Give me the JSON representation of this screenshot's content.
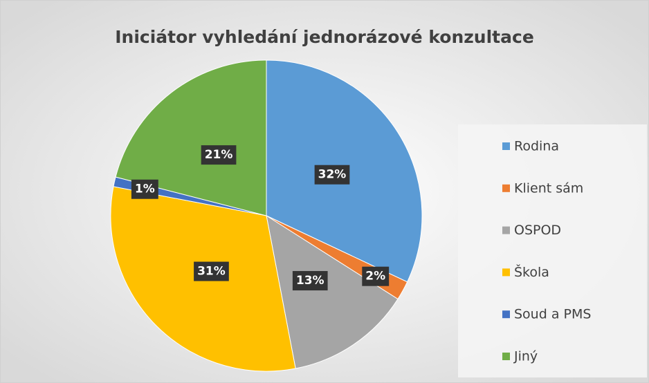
{
  "chart_data": {
    "type": "pie",
    "title": "Iniciátor vyhledání jednorázové konzultace",
    "categories": [
      "Rodina",
      "Klient sám",
      "OSPOD",
      "Škola",
      "Soud a PMS",
      "Jiný"
    ],
    "values": [
      32,
      2,
      13,
      31,
      1,
      21
    ],
    "value_labels": [
      "32%",
      "2%",
      "13%",
      "31%",
      "1%",
      "21%"
    ],
    "colors": [
      "#5b9bd5",
      "#ed7d31",
      "#a5a5a5",
      "#ffc000",
      "#4472c4",
      "#70ad47"
    ],
    "legend": "right"
  }
}
